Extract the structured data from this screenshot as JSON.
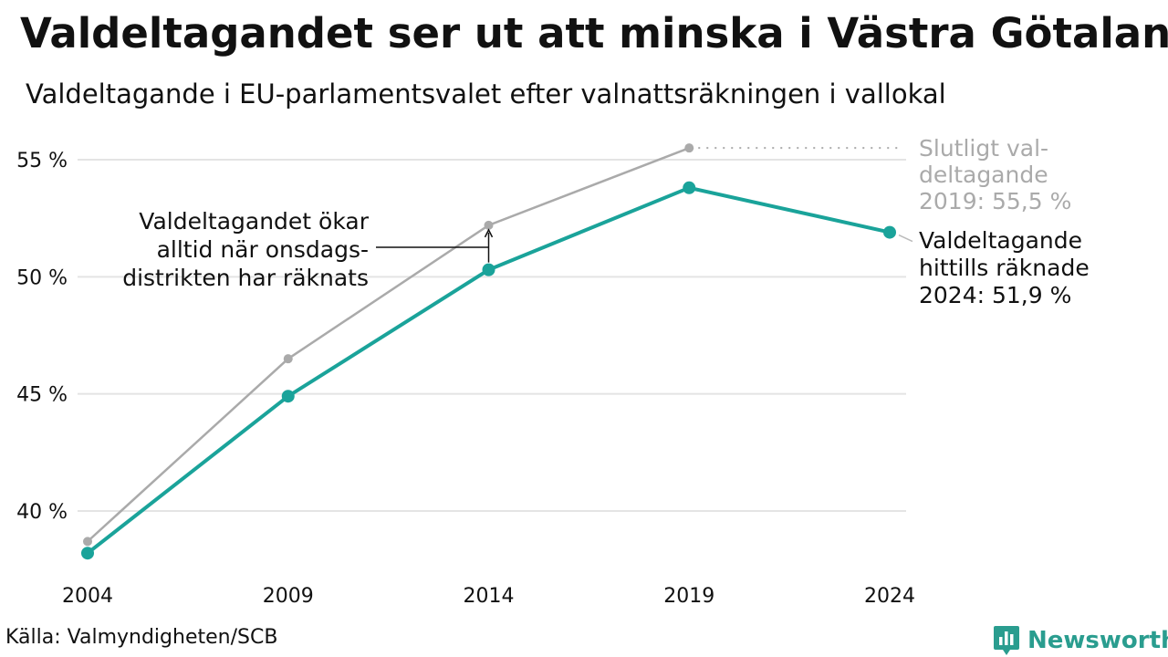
{
  "title": "Valdeltagandet ser ut att minska i Västra Götaland",
  "subtitle": "Valdeltagande i EU-parlamentsvalet efter valnattsräkningen i vallokal",
  "source": "Källa: Valmyndigheten/SCB",
  "brand": "Newsworthy",
  "chart_data": {
    "type": "line",
    "x": [
      2004,
      2009,
      2014,
      2019,
      2024
    ],
    "x_tick_labels": [
      "2004",
      "2009",
      "2014",
      "2019",
      "2024"
    ],
    "ylim": [
      37.5,
      56.5
    ],
    "y_ticks": [
      40,
      45,
      50,
      55
    ],
    "y_tick_labels": [
      "40 %",
      "45 %",
      "50 %",
      "55 %"
    ],
    "grid": true,
    "series": [
      {
        "key": "final",
        "color": "#aaaaaa",
        "x": [
          2004,
          2009,
          2014,
          2019
        ],
        "values": [
          38.7,
          46.5,
          52.2,
          55.5
        ]
      },
      {
        "key": "election_night",
        "color": "#1aa39a",
        "x": [
          2004,
          2009,
          2014,
          2019,
          2024
        ],
        "values": [
          38.2,
          44.9,
          50.3,
          53.8,
          51.9
        ]
      }
    ],
    "annotations": {
      "final_label": [
        "Slutligt val-",
        "deltagande",
        "2019: 55,5 %"
      ],
      "current_label": [
        "Valdeltagande",
        "hittills räknade",
        "2024: 51,9 %"
      ],
      "note": [
        "Valdeltagandet ökar",
        "alltid när onsdags-",
        "distrikten har räknats"
      ]
    }
  }
}
